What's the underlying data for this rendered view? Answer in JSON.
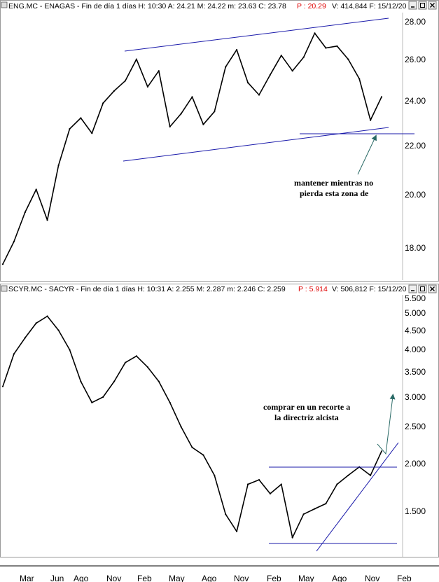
{
  "chart_data": [
    {
      "type": "line",
      "header": {
        "text": "ENG.MC - ENAGAS - Fin de día 1 días  H: 10:30  A: 24.21  M: 24.22  m: 23.63  C: 23.78",
        "p_value": "P : 20.29",
        "tail": "V: 414,844  F: 15/12/20"
      },
      "y_ticks": [
        "28.00",
        "26.00",
        "24.00",
        "22.00",
        "20.00",
        "18.00"
      ],
      "ylim": [
        16.9,
        28.6
      ],
      "y_scale": "log",
      "series": [
        {
          "x": [
            "2016-02",
            "2016-03",
            "2016-04",
            "2016-05",
            "2016-06",
            "2016-07",
            "2016-08",
            "2016-09",
            "2016-10",
            "2016-11",
            "2016-12",
            "2017-01",
            "2017-02",
            "2017-03",
            "2017-04",
            "2017-05",
            "2017-06",
            "2017-07",
            "2017-08",
            "2017-09",
            "2017-10",
            "2017-11",
            "2017-12",
            "2018-01",
            "2018-02",
            "2018-03",
            "2018-04",
            "2018-05",
            "2018-06",
            "2018-07",
            "2018-08",
            "2018-09",
            "2018-10",
            "2018-11",
            "2018-12"
          ],
          "values": [
            17.4,
            18.2,
            19.3,
            20.2,
            19.0,
            21.2,
            22.8,
            23.3,
            22.6,
            24.0,
            24.6,
            25.1,
            26.2,
            24.8,
            25.6,
            22.9,
            23.5,
            24.3,
            23.0,
            23.6,
            25.8,
            26.7,
            25.0,
            24.4,
            25.4,
            26.4,
            25.6,
            26.3,
            27.6,
            26.8,
            26.9,
            26.2,
            25.2,
            23.2,
            24.3
          ]
        }
      ],
      "annotations": [
        "mantener mientras no",
        "pierda esta zona de"
      ]
    },
    {
      "type": "line",
      "header": {
        "text": "SCYR.MC - SACYR - Fin de día 1 días  H: 10:31  A: 2.255  M: 2.287  m: 2.246  C: 2.259",
        "p_value": "P : 5.914",
        "tail": "V: 506,812  F: 15/12/20"
      },
      "y_ticks": [
        "5.500",
        "5.000",
        "4.500",
        "4.000",
        "3.500",
        "3.000",
        "2.500",
        "2.000",
        "1.500"
      ],
      "ylim": [
        1.22,
        5.65
      ],
      "y_scale": "log",
      "series": [
        {
          "x": [
            "2016-02",
            "2016-03",
            "2016-04",
            "2016-05",
            "2016-06",
            "2016-07",
            "2016-08",
            "2016-09",
            "2016-10",
            "2016-11",
            "2016-12",
            "2017-01",
            "2017-02",
            "2017-03",
            "2017-04",
            "2017-05",
            "2017-06",
            "2017-07",
            "2017-08",
            "2017-09",
            "2017-10",
            "2017-11",
            "2017-12",
            "2018-01",
            "2018-02",
            "2018-03",
            "2018-04",
            "2018-05",
            "2018-06",
            "2018-07",
            "2018-08",
            "2018-09",
            "2018-10",
            "2018-11",
            "2018-12"
          ],
          "values": [
            3.3,
            4.0,
            4.4,
            4.8,
            5.0,
            4.6,
            4.1,
            3.4,
            3.0,
            3.1,
            3.4,
            3.8,
            3.95,
            3.7,
            3.4,
            3.0,
            2.6,
            2.3,
            2.2,
            1.95,
            1.55,
            1.4,
            1.85,
            1.9,
            1.75,
            1.85,
            1.35,
            1.55,
            1.6,
            1.65,
            1.85,
            1.95,
            2.05,
            1.95,
            2.25
          ]
        }
      ],
      "annotations": [
        "comprar en un recorte a",
        "la directriz alcista"
      ]
    }
  ],
  "x_axis": {
    "labels": [
      "Mar",
      "Jun",
      "Ago",
      "Nov",
      "Feb",
      "May",
      "Ago",
      "Nov",
      "Feb",
      "May",
      "Ago",
      "Nov",
      "Feb"
    ]
  },
  "colors": {
    "price": "#000000",
    "trendline": "#1a1aaa",
    "arrow": "#2a6a66",
    "p_value": "#e00000"
  },
  "icons": [
    "minimize-icon",
    "maximize-icon",
    "close-icon"
  ]
}
